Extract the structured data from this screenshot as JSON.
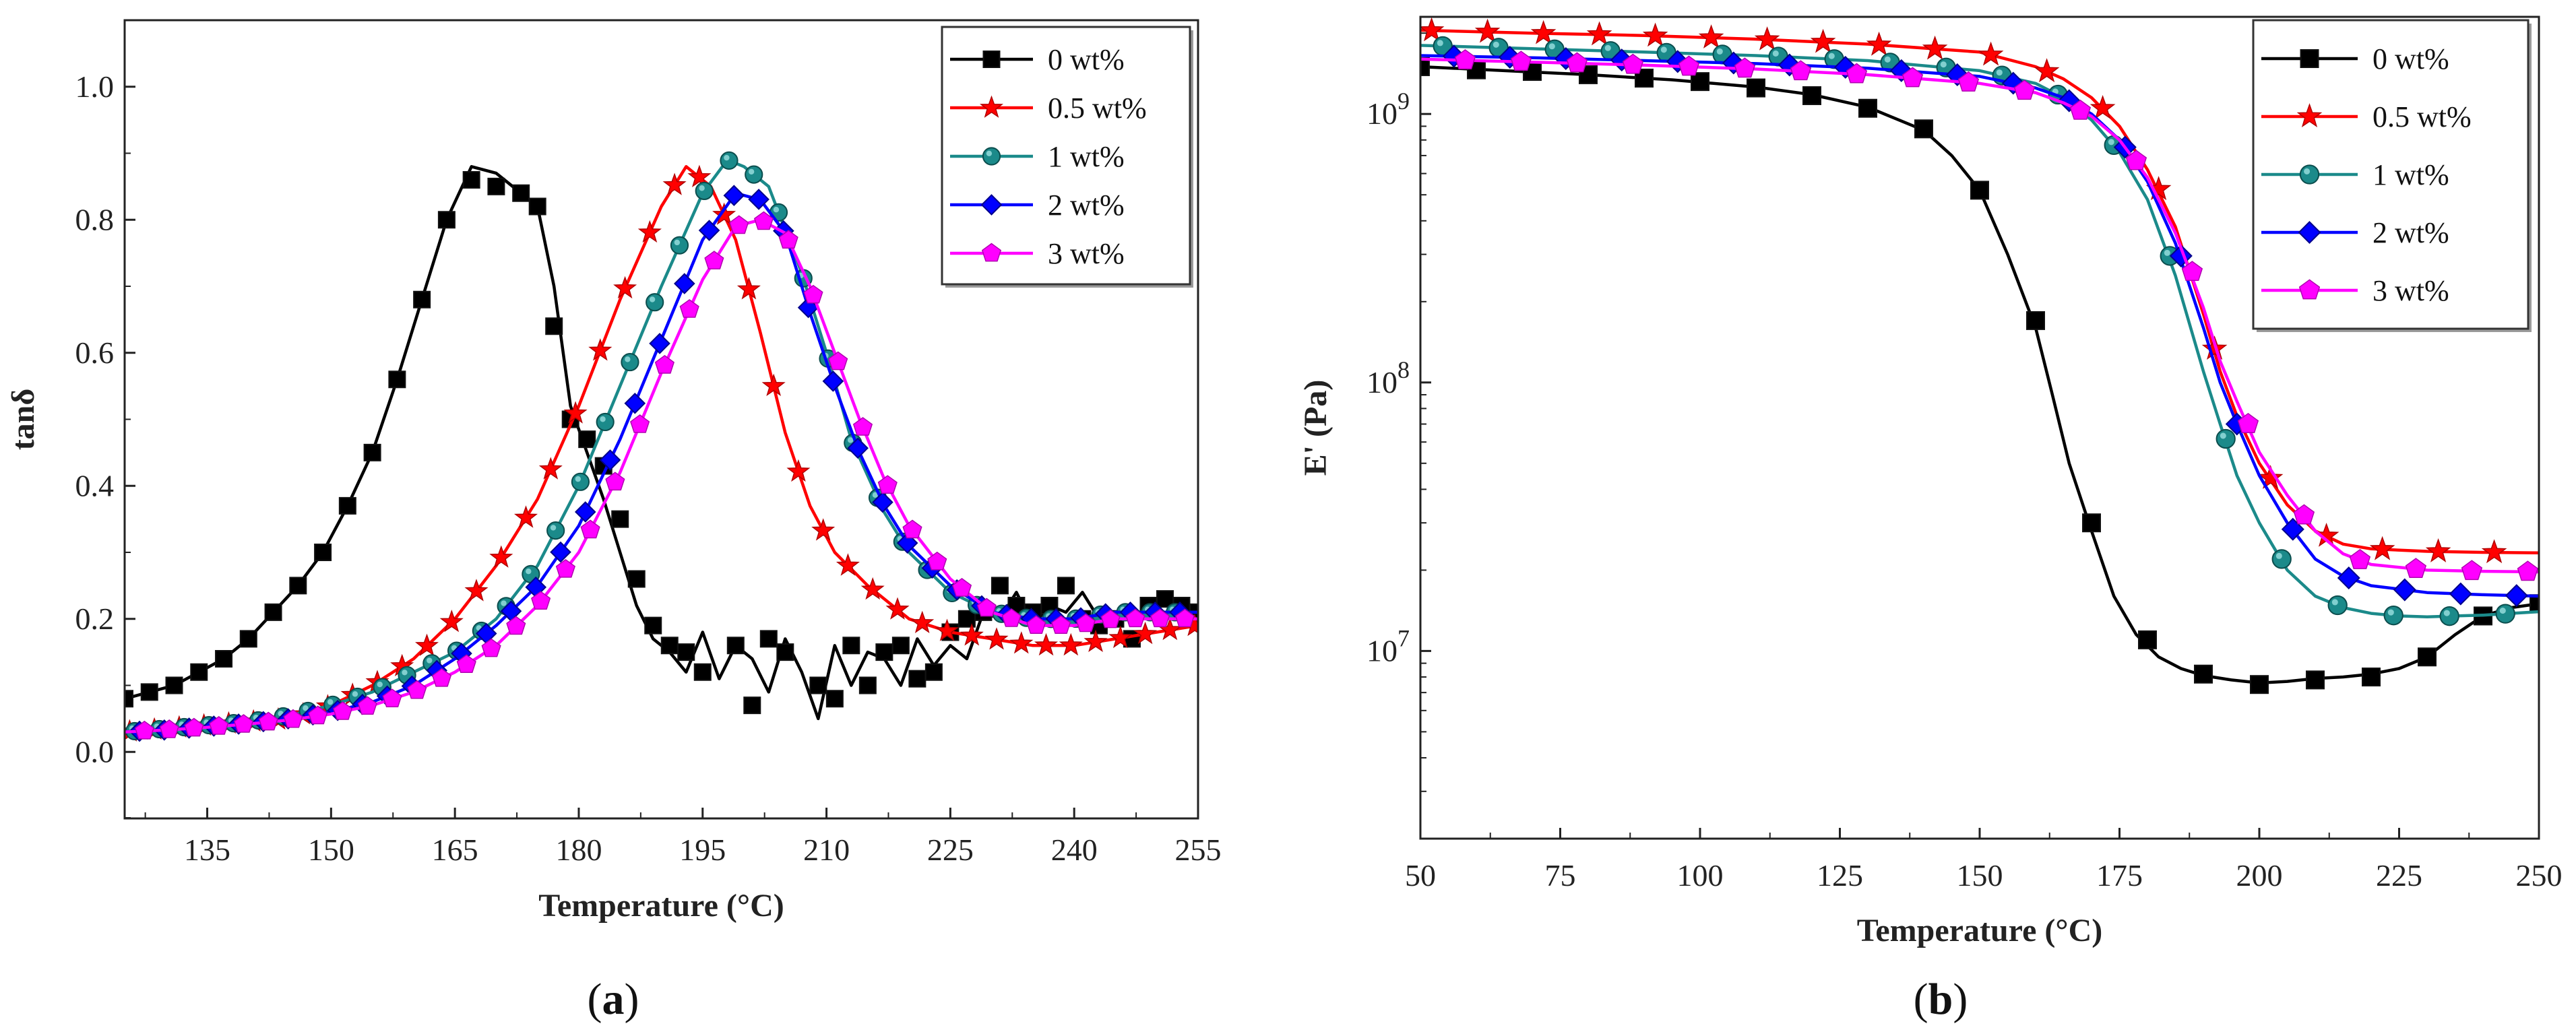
{
  "panels": [
    {
      "id": "a",
      "caption_open": "(",
      "caption_letter": "a",
      "caption_close": ")"
    },
    {
      "id": "b",
      "caption_open": "(",
      "caption_letter": "b",
      "caption_close": ")"
    }
  ],
  "chart_data": [
    {
      "type": "line",
      "title": "",
      "xlabel": "Temperature (°C)",
      "ylabel": "tanδ",
      "xlim": [
        125,
        255
      ],
      "ylim": [
        -0.1,
        1.1
      ],
      "yscale": "linear",
      "xticks": [
        135,
        150,
        165,
        180,
        195,
        210,
        225,
        240,
        255
      ],
      "yticks": [
        0.0,
        0.2,
        0.4,
        0.6,
        0.8,
        1.0
      ],
      "ytick_labels": [
        "0.0",
        "0.2",
        "0.4",
        "0.6",
        "0.8",
        "1.0"
      ],
      "legend_position": "top-right",
      "series": [
        {
          "name": "0 wt%",
          "color": "#000000",
          "marker": "square",
          "x": [
            125,
            128,
            131,
            134,
            137,
            140,
            143,
            146,
            149,
            152,
            155,
            158,
            161,
            164,
            167,
            170,
            173,
            175,
            177,
            179,
            181,
            183,
            185,
            187,
            189,
            191,
            193,
            195,
            197,
            199,
            201,
            203,
            205,
            207,
            209,
            211,
            213,
            215,
            217,
            219,
            221,
            223,
            225,
            227,
            229,
            231,
            233,
            235,
            237,
            239,
            241,
            243,
            245,
            247,
            249,
            251,
            253,
            255
          ],
          "y": [
            0.08,
            0.09,
            0.1,
            0.12,
            0.14,
            0.17,
            0.21,
            0.25,
            0.3,
            0.37,
            0.45,
            0.56,
            0.68,
            0.8,
            0.88,
            0.87,
            0.84,
            0.82,
            0.7,
            0.52,
            0.45,
            0.38,
            0.3,
            0.22,
            0.17,
            0.15,
            0.12,
            0.18,
            0.11,
            0.16,
            0.14,
            0.09,
            0.17,
            0.12,
            0.05,
            0.16,
            0.1,
            0.15,
            0.14,
            0.1,
            0.17,
            0.13,
            0.16,
            0.14,
            0.21,
            0.2,
            0.24,
            0.19,
            0.22,
            0.21,
            0.24,
            0.2,
            0.19,
            0.21,
            0.2,
            0.23,
            0.22,
            0.21
          ],
          "marker_x": [
            125,
            128,
            131,
            134,
            137,
            140,
            143,
            146,
            149,
            152,
            155,
            158,
            161,
            164,
            167,
            170,
            173,
            175,
            177,
            179,
            181,
            183,
            185,
            187,
            189,
            191,
            193,
            195,
            199,
            201,
            203,
            205,
            209,
            211,
            213,
            215,
            217,
            219,
            221,
            223,
            225,
            227,
            229,
            231,
            233,
            235,
            237,
            239,
            241,
            243,
            245,
            247,
            249,
            251,
            253,
            255
          ],
          "marker_y": [
            0.08,
            0.09,
            0.1,
            0.12,
            0.14,
            0.17,
            0.21,
            0.25,
            0.3,
            0.37,
            0.45,
            0.56,
            0.68,
            0.8,
            0.86,
            0.85,
            0.84,
            0.82,
            0.64,
            0.5,
            0.47,
            0.43,
            0.35,
            0.26,
            0.19,
            0.16,
            0.15,
            0.12,
            0.16,
            0.07,
            0.17,
            0.15,
            0.1,
            0.08,
            0.16,
            0.1,
            0.15,
            0.16,
            0.11,
            0.12,
            0.18,
            0.2,
            0.21,
            0.25,
            0.22,
            0.21,
            0.22,
            0.25,
            0.2,
            0.19,
            0.2,
            0.17,
            0.22,
            0.23,
            0.22,
            0.21
          ]
        },
        {
          "name": "0.5 wt%",
          "color": "#ff0000",
          "marker": "star",
          "x": [
            125,
            130,
            135,
            140,
            145,
            150,
            155,
            160,
            165,
            170,
            175,
            180,
            185,
            190,
            193,
            196,
            199,
            202,
            205,
            208,
            211,
            215,
            220,
            225,
            230,
            235,
            240,
            245,
            250,
            255
          ],
          "y": [
            0.03,
            0.035,
            0.04,
            0.045,
            0.05,
            0.07,
            0.1,
            0.14,
            0.2,
            0.28,
            0.38,
            0.52,
            0.68,
            0.82,
            0.88,
            0.85,
            0.77,
            0.63,
            0.48,
            0.37,
            0.3,
            0.25,
            0.2,
            0.18,
            0.17,
            0.16,
            0.16,
            0.17,
            0.18,
            0.19
          ]
        },
        {
          "name": "1 wt%",
          "color": "#1b8a8a",
          "marker": "circle",
          "x": [
            125,
            130,
            135,
            140,
            145,
            150,
            155,
            160,
            165,
            170,
            175,
            180,
            185,
            190,
            195,
            198,
            200,
            203,
            207,
            210,
            213,
            217,
            220,
            225,
            230,
            235,
            240,
            245,
            250,
            255
          ],
          "y": [
            0.03,
            0.035,
            0.04,
            0.045,
            0.055,
            0.07,
            0.09,
            0.12,
            0.15,
            0.2,
            0.28,
            0.4,
            0.55,
            0.7,
            0.84,
            0.89,
            0.88,
            0.85,
            0.72,
            0.6,
            0.47,
            0.36,
            0.3,
            0.24,
            0.21,
            0.2,
            0.2,
            0.21,
            0.21,
            0.21
          ]
        },
        {
          "name": "2 wt%",
          "color": "#0000ff",
          "marker": "diamond",
          "x": [
            125,
            130,
            135,
            140,
            145,
            150,
            155,
            160,
            165,
            170,
            175,
            180,
            185,
            190,
            195,
            199,
            202,
            205,
            208,
            211,
            214,
            217,
            220,
            225,
            230,
            235,
            240,
            245,
            250,
            255
          ],
          "y": [
            0.03,
            0.033,
            0.038,
            0.043,
            0.05,
            0.06,
            0.075,
            0.1,
            0.14,
            0.19,
            0.25,
            0.34,
            0.47,
            0.62,
            0.77,
            0.84,
            0.83,
            0.78,
            0.66,
            0.55,
            0.45,
            0.37,
            0.31,
            0.25,
            0.21,
            0.2,
            0.2,
            0.21,
            0.21,
            0.21
          ]
        },
        {
          "name": "3 wt%",
          "color": "#ff00ff",
          "marker": "pentagon",
          "x": [
            125,
            130,
            135,
            140,
            145,
            150,
            155,
            160,
            165,
            170,
            175,
            180,
            185,
            190,
            195,
            199,
            202,
            205,
            208,
            211,
            214,
            217,
            220,
            225,
            230,
            235,
            240,
            245,
            250,
            255
          ],
          "y": [
            0.03,
            0.033,
            0.037,
            0.042,
            0.048,
            0.057,
            0.07,
            0.09,
            0.12,
            0.16,
            0.22,
            0.3,
            0.42,
            0.57,
            0.71,
            0.79,
            0.8,
            0.78,
            0.7,
            0.6,
            0.5,
            0.41,
            0.34,
            0.26,
            0.21,
            0.19,
            0.19,
            0.2,
            0.2,
            0.2
          ]
        }
      ]
    },
    {
      "type": "line",
      "title": "",
      "xlabel": "Temperature (°C)",
      "ylabel": "E' (Pa)",
      "xlim": [
        50,
        250
      ],
      "ylim": [
        2000000,
        2300000000
      ],
      "yscale": "log",
      "xticks": [
        50,
        75,
        100,
        125,
        150,
        175,
        200,
        225,
        250
      ],
      "yticks": [
        10000000,
        100000000,
        1000000000
      ],
      "ytick_labels": [
        {
          "base": "10",
          "exp": "7"
        },
        {
          "base": "10",
          "exp": "8"
        },
        {
          "base": "10",
          "exp": "9"
        }
      ],
      "legend_position": "top-right",
      "series": [
        {
          "name": "0 wt%",
          "color": "#000000",
          "marker": "square",
          "x": [
            50,
            65,
            80,
            95,
            110,
            120,
            130,
            140,
            145,
            150,
            155,
            160,
            163,
            166,
            170,
            174,
            178,
            182,
            186,
            190,
            195,
            200,
            205,
            210,
            215,
            220,
            225,
            230,
            235,
            240,
            245,
            250
          ],
          "y": [
            1500000000,
            1450000000,
            1400000000,
            1340000000,
            1260000000,
            1180000000,
            1060000000,
            870000000,
            700000000,
            520000000,
            300000000,
            160000000,
            90000000,
            50000000,
            28000000,
            16000000,
            11500000,
            9500000,
            8600000,
            8100000,
            7800000,
            7600000,
            7700000,
            7900000,
            8000000,
            8200000,
            8600000,
            9500000,
            11500000,
            13500000,
            14500000,
            15000000
          ],
          "marker_x": [
            50,
            60,
            70,
            80,
            90,
            100,
            110,
            120,
            130,
            140,
            150,
            160,
            170,
            180,
            190,
            200,
            210,
            220,
            230,
            240,
            250
          ],
          "marker_y": [
            1500000000,
            1460000000,
            1440000000,
            1400000000,
            1360000000,
            1320000000,
            1250000000,
            1170000000,
            1050000000,
            880000000,
            520000000,
            170000000,
            30000000,
            11000000,
            8200000,
            7500000,
            7800000,
            8000000,
            9500000,
            13500000,
            15000000
          ]
        },
        {
          "name": "0.5 wt%",
          "color": "#ff0000",
          "marker": "star",
          "x": [
            50,
            70,
            90,
            110,
            130,
            150,
            160,
            165,
            170,
            175,
            180,
            185,
            190,
            193,
            196,
            200,
            205,
            210,
            215,
            220,
            230,
            240,
            250
          ],
          "y": [
            2050000000,
            2000000000,
            1960000000,
            1900000000,
            1820000000,
            1700000000,
            1500000000,
            1350000000,
            1150000000,
            900000000,
            620000000,
            380000000,
            180000000,
            110000000,
            75000000,
            50000000,
            35000000,
            28000000,
            25000000,
            24000000,
            23500000,
            23300000,
            23200000
          ]
        },
        {
          "name": "1 wt%",
          "color": "#1b8a8a",
          "marker": "circle",
          "x": [
            50,
            70,
            90,
            110,
            130,
            150,
            160,
            165,
            170,
            175,
            180,
            185,
            190,
            193,
            196,
            200,
            205,
            210,
            215,
            220,
            225,
            230,
            235,
            240,
            245,
            250
          ],
          "y": [
            1800000000,
            1750000000,
            1700000000,
            1650000000,
            1580000000,
            1450000000,
            1300000000,
            1150000000,
            950000000,
            720000000,
            480000000,
            250000000,
            110000000,
            70000000,
            45000000,
            30000000,
            20000000,
            16000000,
            14500000,
            13800000,
            13500000,
            13400000,
            13500000,
            13600000,
            13800000,
            14000000
          ]
        },
        {
          "name": "2 wt%",
          "color": "#0000ff",
          "marker": "diamond",
          "x": [
            50,
            70,
            90,
            110,
            130,
            150,
            160,
            165,
            170,
            175,
            180,
            185,
            190,
            193,
            196,
            200,
            205,
            210,
            215,
            220,
            230,
            240,
            250
          ],
          "y": [
            1650000000,
            1620000000,
            1580000000,
            1540000000,
            1480000000,
            1380000000,
            1250000000,
            1150000000,
            1000000000,
            800000000,
            560000000,
            330000000,
            160000000,
            100000000,
            70000000,
            45000000,
            30000000,
            22000000,
            19000000,
            17500000,
            16500000,
            16200000,
            16000000
          ]
        },
        {
          "name": "3 wt%",
          "color": "#ff00ff",
          "marker": "pentagon",
          "x": [
            50,
            70,
            90,
            110,
            130,
            150,
            160,
            165,
            170,
            175,
            180,
            185,
            190,
            193,
            196,
            200,
            205,
            210,
            215,
            220,
            230,
            240,
            250
          ],
          "y": [
            1600000000,
            1560000000,
            1520000000,
            1470000000,
            1400000000,
            1300000000,
            1200000000,
            1100000000,
            980000000,
            800000000,
            580000000,
            360000000,
            190000000,
            120000000,
            85000000,
            55000000,
            38000000,
            28000000,
            23000000,
            21000000,
            20000000,
            19800000,
            19700000
          ]
        }
      ]
    }
  ]
}
